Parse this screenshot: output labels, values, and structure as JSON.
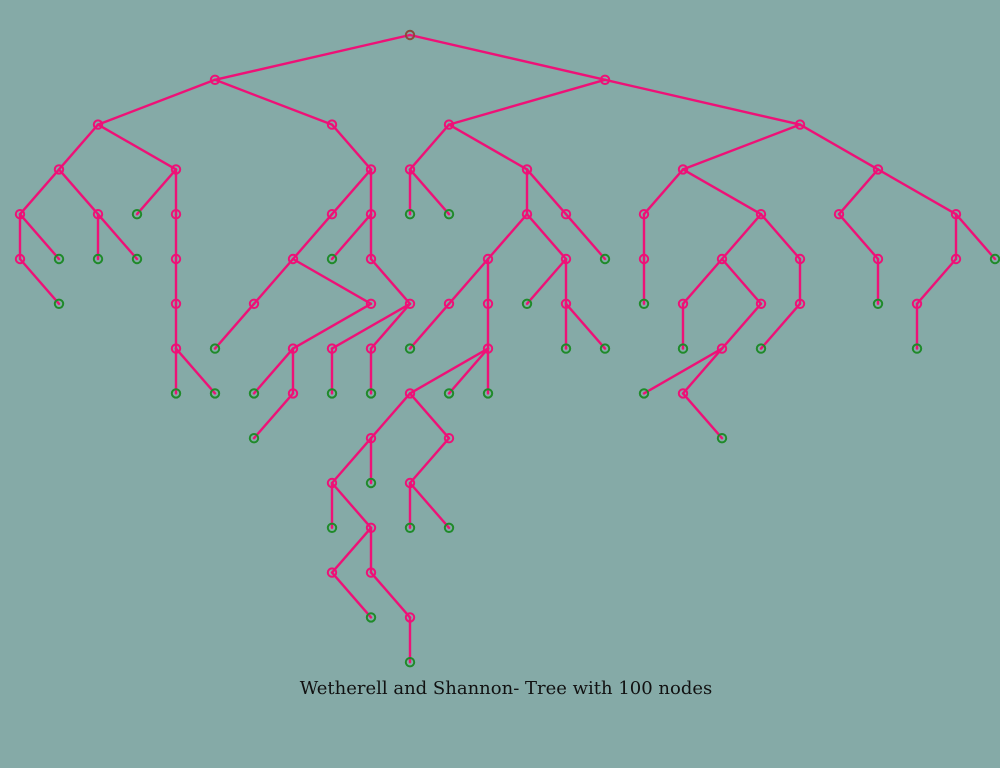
{
  "caption": "Wetherell and Shannon- Tree with 100 nodes",
  "colors": {
    "background": "#85aaa7",
    "edge": "#ee1177",
    "node_stroke": "#ee1177",
    "leaf_stroke": "#1f8a2a",
    "root_stroke": "#8a4a3a",
    "caption_text": "#111111"
  },
  "tree": {
    "node_count": 100,
    "rows": [
      [
        [
          0,
          10,
          -1
        ]
      ],
      [
        [
          1,
          5,
          0
        ],
        [
          2,
          15,
          0
        ]
      ],
      [
        [
          3,
          2,
          1
        ],
        [
          4,
          8,
          1
        ],
        [
          5,
          11,
          2
        ],
        [
          6,
          20,
          2
        ]
      ],
      [
        [
          7,
          1,
          3
        ],
        [
          8,
          4,
          3
        ],
        [
          9,
          9,
          4
        ],
        [
          10,
          10,
          5
        ],
        [
          11,
          13,
          5
        ],
        [
          12,
          17,
          6
        ],
        [
          13,
          22,
          6
        ]
      ],
      [
        [
          14,
          0,
          7
        ],
        [
          15,
          2,
          7
        ],
        [
          16,
          3,
          8
        ],
        [
          17,
          4,
          8
        ],
        [
          18,
          8,
          9
        ],
        [
          19,
          9,
          9
        ],
        [
          20,
          10,
          10
        ],
        [
          21,
          11,
          10
        ],
        [
          22,
          13,
          11
        ],
        [
          23,
          14,
          11
        ],
        [
          24,
          16,
          12
        ],
        [
          25,
          19,
          12
        ],
        [
          26,
          21,
          13
        ],
        [
          27,
          24,
          13
        ]
      ],
      [
        [
          28,
          0,
          14
        ],
        [
          29,
          1,
          14
        ],
        [
          30,
          2,
          15
        ],
        [
          31,
          3,
          15
        ],
        [
          32,
          4,
          17
        ],
        [
          33,
          7,
          18
        ],
        [
          34,
          8,
          19
        ],
        [
          35,
          9,
          19
        ],
        [
          36,
          12,
          22
        ],
        [
          37,
          14,
          22
        ],
        [
          38,
          15,
          23
        ],
        [
          39,
          16,
          24
        ],
        [
          40,
          18,
          25
        ],
        [
          41,
          20,
          25
        ],
        [
          42,
          22,
          26
        ],
        [
          43,
          24,
          27
        ],
        [
          44,
          25,
          27
        ]
      ],
      [
        [
          45,
          1,
          28
        ],
        [
          46,
          4,
          32
        ],
        [
          47,
          6,
          33
        ],
        [
          48,
          9,
          33
        ],
        [
          49,
          10,
          35
        ],
        [
          50,
          11,
          36
        ],
        [
          51,
          12,
          36
        ],
        [
          52,
          13,
          37
        ],
        [
          53,
          14,
          37
        ],
        [
          54,
          16,
          39
        ],
        [
          55,
          17,
          40
        ],
        [
          56,
          19,
          40
        ],
        [
          57,
          20,
          41
        ],
        [
          58,
          22,
          42
        ],
        [
          59,
          23,
          43
        ]
      ],
      [
        [
          60,
          4,
          46
        ],
        [
          61,
          5,
          47
        ],
        [
          62,
          7,
          48
        ],
        [
          63,
          8,
          49
        ],
        [
          64,
          9,
          49
        ],
        [
          65,
          10,
          50
        ],
        [
          66,
          12,
          51
        ],
        [
          67,
          14,
          53
        ],
        [
          68,
          15,
          53
        ],
        [
          69,
          17,
          55
        ],
        [
          70,
          18,
          56
        ],
        [
          71,
          19,
          57
        ],
        [
          72,
          23,
          59
        ]
      ],
      [
        [
          73,
          4,
          60
        ],
        [
          74,
          5,
          60
        ],
        [
          75,
          6,
          62
        ],
        [
          76,
          7,
          62
        ],
        [
          77,
          8,
          63
        ],
        [
          78,
          9,
          64
        ],
        [
          79,
          10,
          66
        ],
        [
          80,
          11,
          66
        ],
        [
          81,
          12,
          66
        ],
        [
          82,
          16,
          70
        ],
        [
          83,
          17,
          70
        ]
      ],
      [
        [
          84,
          6,
          76
        ],
        [
          85,
          9,
          79
        ],
        [
          86,
          11,
          79
        ],
        [
          87,
          18,
          83
        ]
      ],
      [
        [
          88,
          8,
          85
        ],
        [
          89,
          9,
          85
        ],
        [
          90,
          10,
          86
        ]
      ],
      [
        [
          91,
          8,
          88
        ],
        [
          92,
          9,
          88
        ],
        [
          93,
          10,
          90
        ],
        [
          94,
          11,
          90
        ]
      ],
      [
        [
          95,
          8,
          92
        ],
        [
          96,
          9,
          92
        ]
      ],
      [
        [
          97,
          9,
          95
        ],
        [
          98,
          10,
          96
        ]
      ],
      [
        [
          99,
          10,
          98
        ]
      ]
    ]
  }
}
